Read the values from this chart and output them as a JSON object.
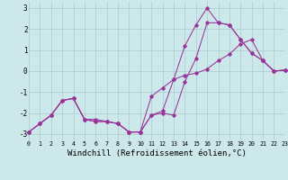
{
  "background_color": "#cce8ea",
  "grid_color": "#aacccc",
  "line_color": "#993399",
  "xlim": [
    0,
    23
  ],
  "ylim": [
    -3.3,
    3.3
  ],
  "xlabel": "Windchill (Refroidissement éolien,°C)",
  "xlabel_fontsize": 6.5,
  "yticks": [
    -3,
    -2,
    -1,
    0,
    1,
    2,
    3
  ],
  "xticks": [
    0,
    1,
    2,
    3,
    4,
    5,
    6,
    7,
    8,
    9,
    10,
    11,
    12,
    13,
    14,
    15,
    16,
    17,
    18,
    19,
    20,
    21,
    22,
    23
  ],
  "curve1_x": [
    0,
    1,
    2,
    3,
    4,
    5,
    6,
    7,
    8,
    9,
    10,
    11,
    12,
    13,
    14,
    15,
    16,
    17,
    18,
    19,
    20,
    21,
    22,
    23
  ],
  "curve1_y": [
    -2.9,
    -2.5,
    -2.1,
    -1.4,
    -1.3,
    -2.3,
    -2.3,
    -2.4,
    -2.5,
    -2.9,
    -2.9,
    -2.1,
    -1.9,
    -0.4,
    1.2,
    2.2,
    3.0,
    2.3,
    2.2,
    1.5,
    0.85,
    0.5,
    0.0,
    0.05
  ],
  "curve2_x": [
    0,
    1,
    2,
    3,
    4,
    5,
    6,
    7,
    8,
    9,
    10,
    11,
    12,
    13,
    14,
    15,
    16,
    17,
    18,
    19,
    20,
    21,
    22,
    23
  ],
  "curve2_y": [
    -2.9,
    -2.5,
    -2.1,
    -1.4,
    -1.3,
    -2.3,
    -2.4,
    -2.4,
    -2.5,
    -2.9,
    -2.9,
    -2.1,
    -2.0,
    -2.1,
    -0.5,
    0.6,
    2.3,
    2.3,
    2.2,
    1.5,
    0.85,
    0.5,
    0.0,
    0.05
  ],
  "curve3_x": [
    0,
    1,
    2,
    3,
    4,
    5,
    6,
    7,
    8,
    9,
    10,
    11,
    12,
    13,
    14,
    15,
    16,
    17,
    18,
    19,
    20,
    21,
    22,
    23
  ],
  "curve3_y": [
    -2.9,
    -2.5,
    -2.1,
    -1.4,
    -1.3,
    -2.3,
    -2.4,
    -2.4,
    -2.5,
    -2.9,
    -2.9,
    -1.2,
    -0.8,
    -0.4,
    -0.2,
    -0.1,
    0.1,
    0.5,
    0.8,
    1.3,
    1.5,
    0.5,
    0.0,
    0.05
  ]
}
